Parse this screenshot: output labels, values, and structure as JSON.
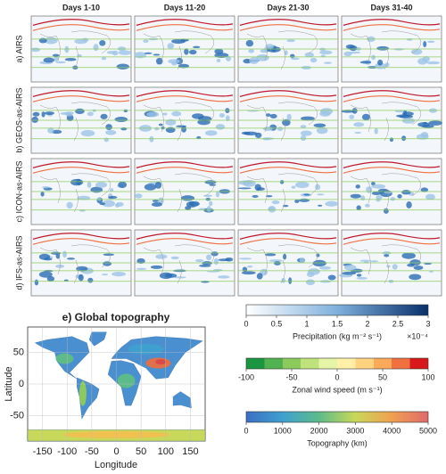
{
  "columns": [
    "Days 1-10",
    "Days 11-20",
    "Days 21-30",
    "Days 31-40"
  ],
  "rows": [
    "a) AIRS",
    "b) GEOS-as-AIRS",
    "c) ICON-as-AIRS",
    "d) IFS-as-AIRS"
  ],
  "topography_map": {
    "title": "e) Global topography",
    "xlabel": "Longitude",
    "ylabel": "Latitude",
    "xlim": [
      -180,
      180
    ],
    "ylim": [
      -90,
      90
    ],
    "xticks": [
      -150,
      -100,
      -50,
      0,
      50,
      100,
      150
    ],
    "yticks": [
      -50,
      0,
      50
    ]
  },
  "colorbars": [
    {
      "label": "Precipitation (kg m⁻² s⁻¹)",
      "multiplier": "×10⁻⁴",
      "lim": [
        0,
        3
      ],
      "ticks": [
        0,
        0.5,
        1,
        1.5,
        2,
        2.5,
        3
      ]
    },
    {
      "label": "Zonal wind speed (m s⁻¹)",
      "lim": [
        -100,
        100
      ],
      "ticks": [
        -100,
        -50,
        0,
        50,
        100
      ]
    },
    {
      "label": "Topography (km)",
      "lim": [
        0,
        5000
      ],
      "ticks": [
        0,
        1000,
        2000,
        3000,
        4000,
        5000
      ]
    }
  ]
}
